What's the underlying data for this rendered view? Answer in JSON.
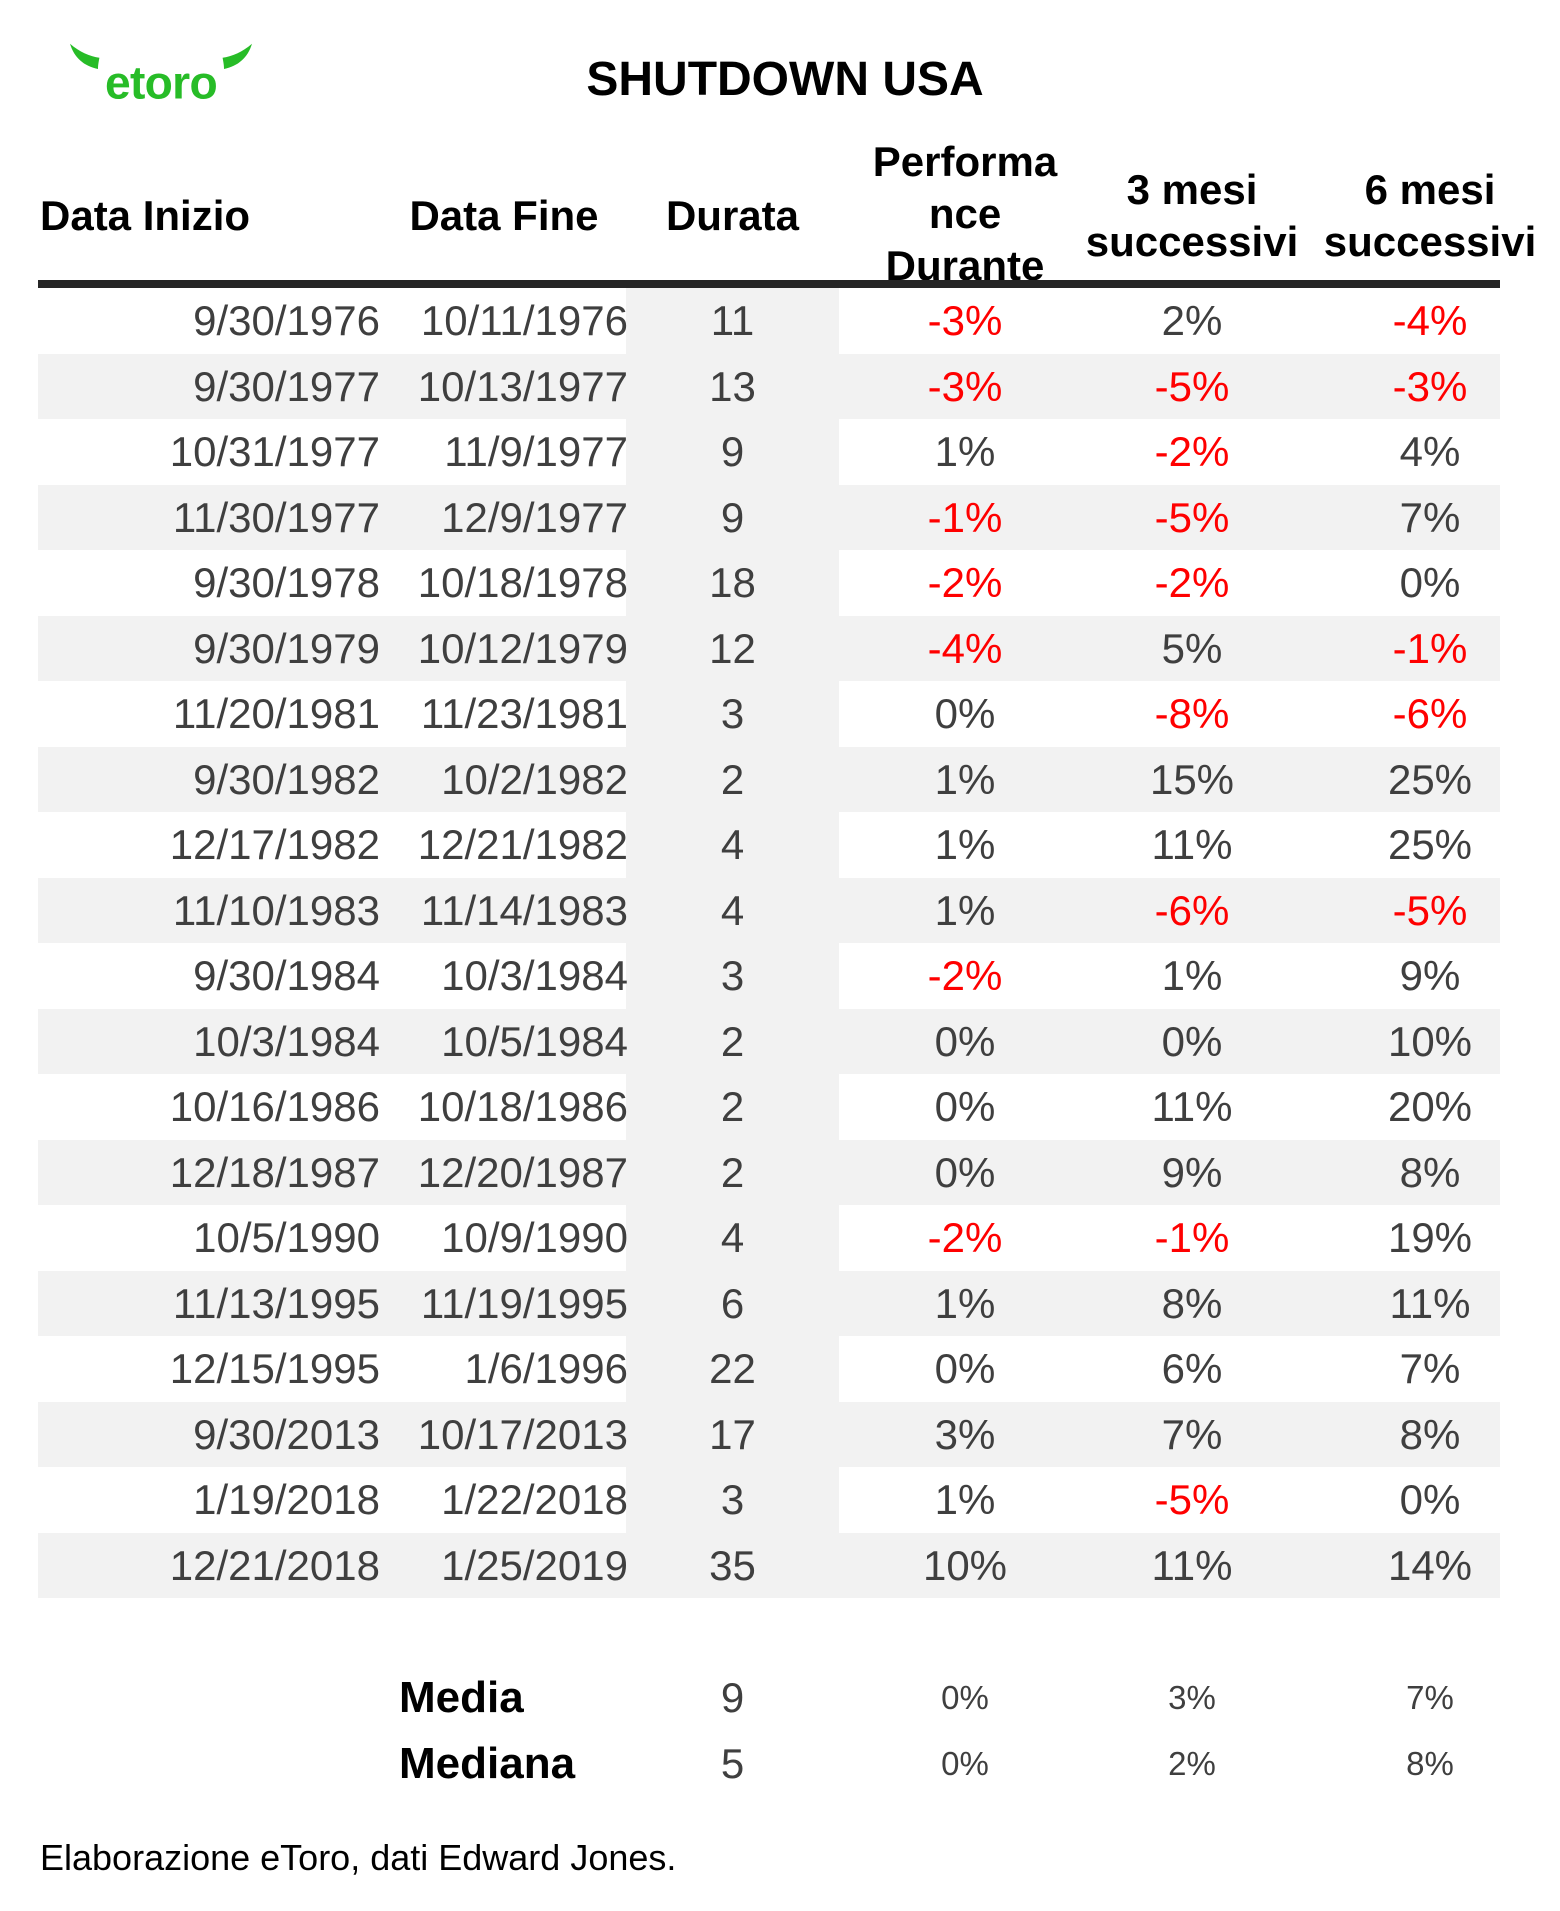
{
  "logo": {
    "text": "etoro",
    "brand_color": "#27bc27"
  },
  "title": "SHUTDOWN USA",
  "display_headers": {
    "col1": "Data Inizio",
    "col2": "Data Fine",
    "col3": "Durata",
    "col4_lines": [
      "Performa",
      "nce",
      "Durante"
    ],
    "col5_lines": [
      "3 mesi",
      "successivi"
    ],
    "col6_lines": [
      "6 mesi",
      "successivi"
    ]
  },
  "chart_data": {
    "type": "table",
    "title": "SHUTDOWN USA",
    "columns": [
      "Data Inizio",
      "Data Fine",
      "Durata",
      "Performance Durante",
      "3 mesi successivi",
      "6 mesi successivi"
    ],
    "rows": [
      [
        "9/30/1976",
        "10/11/1976",
        "11",
        "-3%",
        "2%",
        "-4%"
      ],
      [
        "9/30/1977",
        "10/13/1977",
        "13",
        "-3%",
        "-5%",
        "-3%"
      ],
      [
        "10/31/1977",
        "11/9/1977",
        "9",
        "1%",
        "-2%",
        "4%"
      ],
      [
        "11/30/1977",
        "12/9/1977",
        "9",
        "-1%",
        "-5%",
        "7%"
      ],
      [
        "9/30/1978",
        "10/18/1978",
        "18",
        "-2%",
        "-2%",
        "0%"
      ],
      [
        "9/30/1979",
        "10/12/1979",
        "12",
        "-4%",
        "5%",
        "-1%"
      ],
      [
        "11/20/1981",
        "11/23/1981",
        "3",
        "0%",
        "-8%",
        "-6%"
      ],
      [
        "9/30/1982",
        "10/2/1982",
        "2",
        "1%",
        "15%",
        "25%"
      ],
      [
        "12/17/1982",
        "12/21/1982",
        "4",
        "1%",
        "11%",
        "25%"
      ],
      [
        "11/10/1983",
        "11/14/1983",
        "4",
        "1%",
        "-6%",
        "-5%"
      ],
      [
        "9/30/1984",
        "10/3/1984",
        "3",
        "-2%",
        "1%",
        "9%"
      ],
      [
        "10/3/1984",
        "10/5/1984",
        "2",
        "0%",
        "0%",
        "10%"
      ],
      [
        "10/16/1986",
        "10/18/1986",
        "2",
        "0%",
        "11%",
        "20%"
      ],
      [
        "12/18/1987",
        "12/20/1987",
        "2",
        "0%",
        "9%",
        "8%"
      ],
      [
        "10/5/1990",
        "10/9/1990",
        "4",
        "-2%",
        "-1%",
        "19%"
      ],
      [
        "11/13/1995",
        "11/19/1995",
        "6",
        "1%",
        "8%",
        "11%"
      ],
      [
        "12/15/1995",
        "1/6/1996",
        "22",
        "0%",
        "6%",
        "7%"
      ],
      [
        "9/30/2013",
        "10/17/2013",
        "17",
        "3%",
        "7%",
        "8%"
      ],
      [
        "1/19/2018",
        "1/22/2018",
        "3",
        "1%",
        "-5%",
        "0%"
      ],
      [
        "12/21/2018",
        "1/25/2019",
        "35",
        "10%",
        "11%",
        "14%"
      ]
    ],
    "summary": [
      {
        "label": "Media",
        "durata": "9",
        "values": [
          "0%",
          "3%",
          "7%"
        ]
      },
      {
        "label": "Mediana",
        "durata": "5",
        "values": [
          "0%",
          "2%",
          "8%"
        ]
      }
    ],
    "legend_position": "none",
    "grid": "row-stripes"
  },
  "footer": "Elaborazione eToro, dati Edward Jones.",
  "colors": {
    "brand_green": "#27bc27",
    "negative_red": "#ff0000",
    "body_text": "#3f3f3f",
    "header_text": "#000000",
    "stripe_gray": "#f2f2f2",
    "rule_dark": "#262626"
  }
}
